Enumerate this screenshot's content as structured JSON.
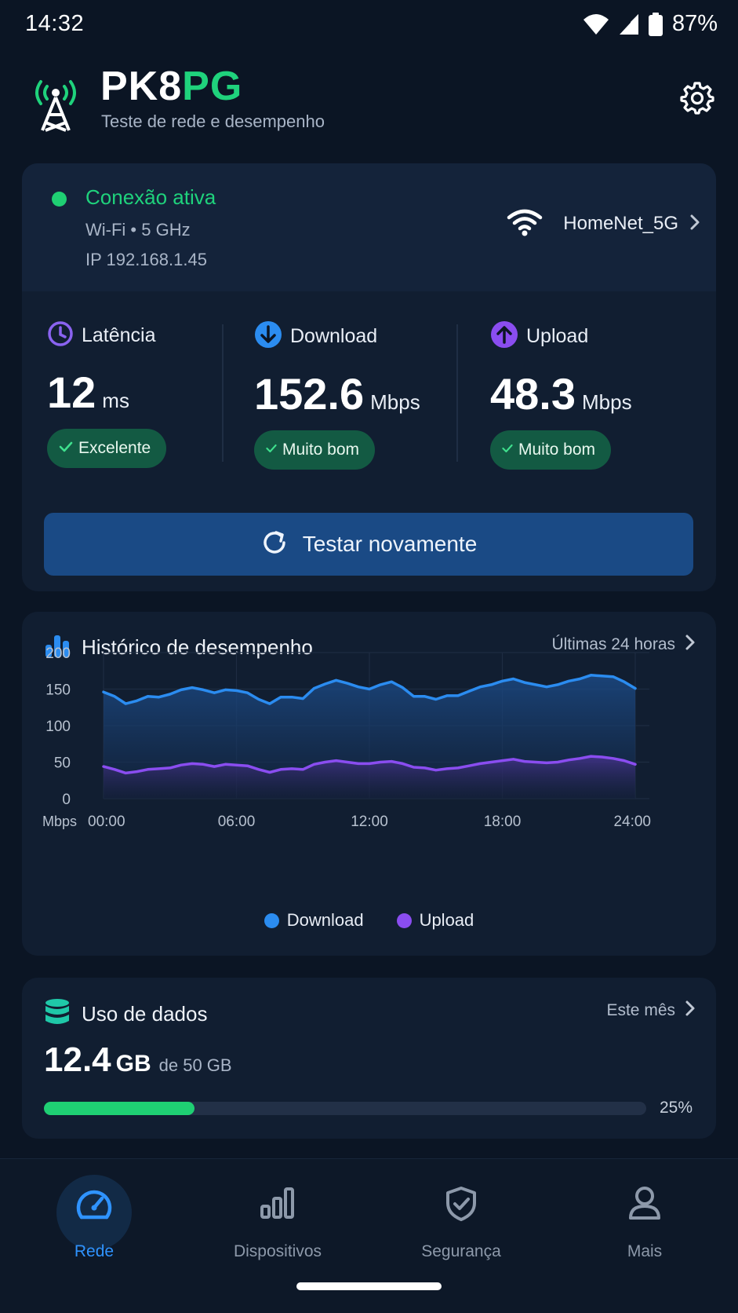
{
  "status_bar": {
    "time": "14:32",
    "battery": "87%"
  },
  "header": {
    "title_main": "PK8",
    "title_accent": "PG",
    "subtitle": "Teste de rede e desempenho"
  },
  "connection": {
    "status": "Conexão ativa",
    "type": "Wi-Fi • 5 GHz",
    "ip": "IP 192.168.1.45",
    "network_name": "HomeNet_5G"
  },
  "metrics": [
    {
      "label": "Latência",
      "value": "12",
      "unit": "ms",
      "badge": "Excelente",
      "icon": "clock-icon"
    },
    {
      "label": "Download",
      "value": "152.6",
      "unit": "Mbps",
      "badge": "Muito bom",
      "icon": "download-arrow-icon"
    },
    {
      "label": "Upload",
      "value": "48.3",
      "unit": "Mbps",
      "badge": "Muito bom",
      "icon": "upload-arrow-icon"
    }
  ],
  "retest_button": {
    "label": "Testar novamente"
  },
  "history": {
    "title": "Histórico de desempenho",
    "range_link": "Últimas 24 horas"
  },
  "chart_data": {
    "type": "area",
    "ylabel": "Mbps",
    "ylim": [
      0,
      200
    ],
    "yticks": [
      "0",
      "50",
      "100",
      "150",
      "200"
    ],
    "xticks": [
      "00:00",
      "06:00",
      "12:00",
      "18:00",
      "24:00"
    ],
    "grid": true,
    "legend_position": "bottom-center",
    "x": [
      0,
      0.5,
      1,
      1.5,
      2,
      2.5,
      3,
      3.5,
      4,
      4.5,
      5,
      5.5,
      6,
      6.5,
      7,
      7.5,
      8,
      8.5,
      9,
      9.5,
      10,
      10.5,
      11,
      11.5,
      12,
      12.5,
      13,
      13.5,
      14,
      14.5,
      15,
      15.5,
      16,
      16.5,
      17,
      17.5,
      18,
      18.5,
      19,
      19.5,
      20,
      20.5,
      21,
      21.5,
      22,
      22.5,
      23,
      23.5,
      24
    ],
    "series": [
      {
        "name": "Download",
        "color": "#2b8cf0",
        "values": [
          146,
          140,
          130,
          134,
          140,
          139,
          143,
          149,
          152,
          149,
          145,
          149,
          148,
          145,
          136,
          130,
          139,
          139,
          137,
          151,
          157,
          162,
          158,
          153,
          150,
          156,
          160,
          152,
          140,
          140,
          136,
          141,
          141,
          147,
          153,
          156,
          161,
          164,
          159,
          156,
          153,
          156,
          161,
          164,
          169,
          168,
          167,
          160,
          151
        ]
      },
      {
        "name": "Upload",
        "color": "#8a4df0",
        "values": [
          44,
          40,
          35,
          37,
          40,
          41,
          42,
          46,
          48,
          47,
          44,
          47,
          46,
          45,
          40,
          36,
          40,
          41,
          40,
          47,
          50,
          52,
          50,
          48,
          48,
          50,
          51,
          48,
          43,
          42,
          39,
          41,
          42,
          45,
          48,
          50,
          52,
          54,
          51,
          50,
          49,
          50,
          53,
          55,
          58,
          57,
          55,
          52,
          47
        ]
      }
    ]
  },
  "data_usage": {
    "title": "Uso de dados",
    "period_link": "Este mês",
    "used": "12.4",
    "unit": "GB",
    "total_text": "de 50 GB",
    "fraction": 0.25,
    "percent_text": "25%"
  },
  "nav": [
    {
      "label": "Rede",
      "icon": "speedometer-icon",
      "active": true
    },
    {
      "label": "Dispositivos",
      "icon": "bar-chart-icon",
      "active": false
    },
    {
      "label": "Segurança",
      "icon": "shield-check-icon",
      "active": false
    },
    {
      "label": "Mais",
      "icon": "user-icon",
      "active": false
    }
  ],
  "colors": {
    "accent_green": "#1fd27c",
    "accent_blue": "#2b8cf0",
    "accent_purple": "#8a4df0",
    "background": "#0b1524"
  }
}
